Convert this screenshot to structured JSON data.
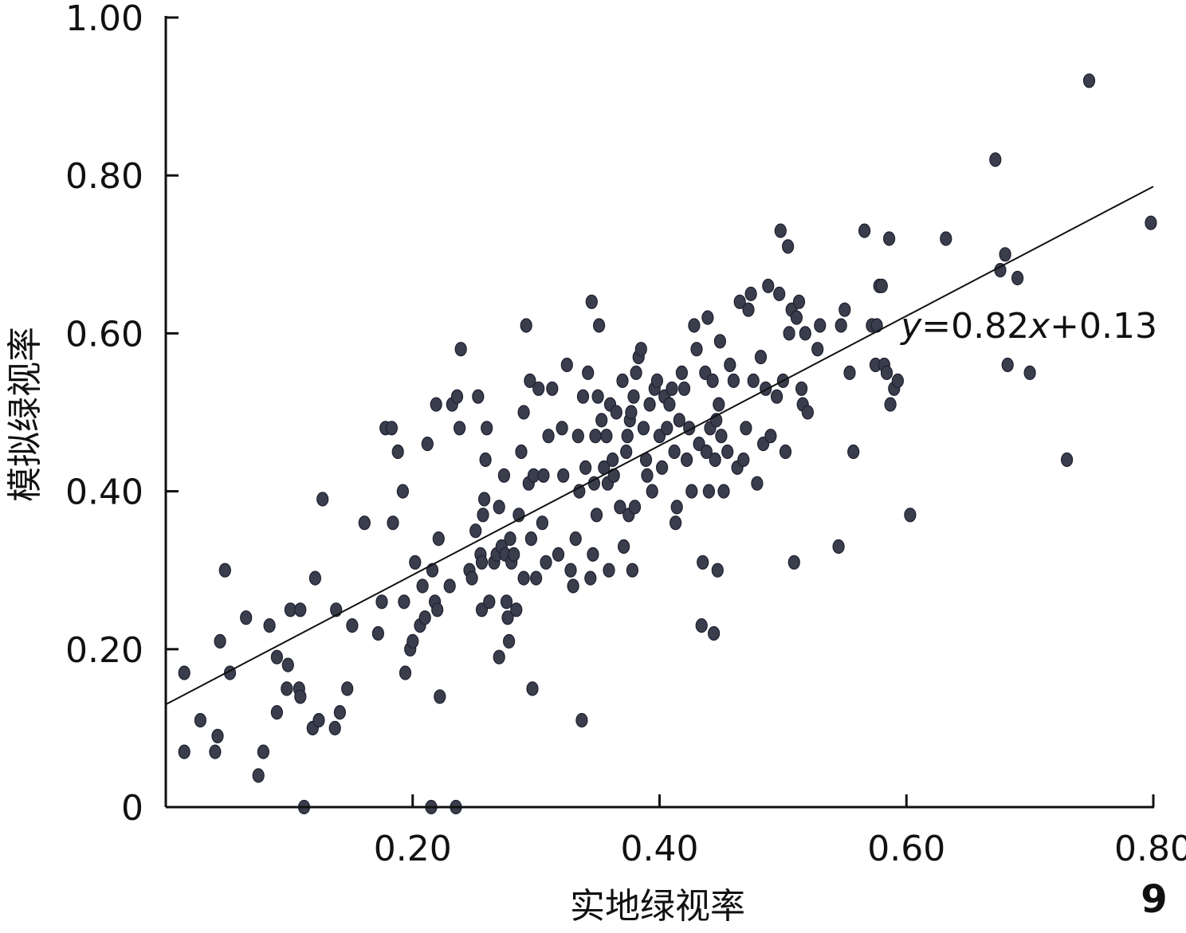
{
  "chart_data": {
    "type": "scatter",
    "xlabel": "实地绿视率",
    "ylabel": "模拟绿视率",
    "xlim": [
      0,
      0.8
    ],
    "ylim": [
      0,
      1.0
    ],
    "x_ticks": [
      {
        "value": 0.2,
        "label": "0.20"
      },
      {
        "value": 0.4,
        "label": "0.40"
      },
      {
        "value": 0.6,
        "label": "0.60"
      },
      {
        "value": 0.8,
        "label": "0.80"
      }
    ],
    "y_ticks": [
      {
        "value": 0,
        "label": "0"
      },
      {
        "value": 0.2,
        "label": "0.20"
      },
      {
        "value": 0.4,
        "label": "0.40"
      },
      {
        "value": 0.6,
        "label": "0.60"
      },
      {
        "value": 0.8,
        "label": "0.80"
      },
      {
        "value": 1.0,
        "label": "1.00"
      }
    ],
    "grid": false,
    "marker_color": "#3a3d4c",
    "trendline": {
      "slope": 0.82,
      "intercept": 0.13,
      "equation_parts": [
        "y",
        "=0.82",
        "x",
        "+0.13"
      ]
    },
    "panel_label": "9",
    "points": [
      [
        0.015,
        0.07
      ],
      [
        0.015,
        0.17
      ],
      [
        0.028,
        0.11
      ],
      [
        0.04,
        0.07
      ],
      [
        0.042,
        0.09
      ],
      [
        0.044,
        0.21
      ],
      [
        0.048,
        0.3
      ],
      [
        0.052,
        0.17
      ],
      [
        0.065,
        0.24
      ],
      [
        0.075,
        0.04
      ],
      [
        0.079,
        0.07
      ],
      [
        0.084,
        0.23
      ],
      [
        0.09,
        0.19
      ],
      [
        0.09,
        0.12
      ],
      [
        0.098,
        0.15
      ],
      [
        0.099,
        0.18
      ],
      [
        0.101,
        0.25
      ],
      [
        0.108,
        0.15
      ],
      [
        0.109,
        0.14
      ],
      [
        0.109,
        0.25
      ],
      [
        0.112,
        0.0
      ],
      [
        0.119,
        0.1
      ],
      [
        0.121,
        0.29
      ],
      [
        0.124,
        0.11
      ],
      [
        0.127,
        0.39
      ],
      [
        0.137,
        0.1
      ],
      [
        0.138,
        0.25
      ],
      [
        0.141,
        0.12
      ],
      [
        0.147,
        0.15
      ],
      [
        0.151,
        0.23
      ],
      [
        0.161,
        0.36
      ],
      [
        0.172,
        0.22
      ],
      [
        0.175,
        0.26
      ],
      [
        0.178,
        0.48
      ],
      [
        0.183,
        0.48
      ],
      [
        0.184,
        0.36
      ],
      [
        0.188,
        0.45
      ],
      [
        0.192,
        0.4
      ],
      [
        0.193,
        0.26
      ],
      [
        0.194,
        0.17
      ],
      [
        0.198,
        0.2
      ],
      [
        0.2,
        0.21
      ],
      [
        0.202,
        0.31
      ],
      [
        0.206,
        0.23
      ],
      [
        0.208,
        0.28
      ],
      [
        0.21,
        0.24
      ],
      [
        0.212,
        0.46
      ],
      [
        0.215,
        0.0
      ],
      [
        0.216,
        0.3
      ],
      [
        0.218,
        0.26
      ],
      [
        0.219,
        0.51
      ],
      [
        0.22,
        0.25
      ],
      [
        0.221,
        0.34
      ],
      [
        0.222,
        0.14
      ],
      [
        0.23,
        0.28
      ],
      [
        0.232,
        0.51
      ],
      [
        0.235,
        0.0
      ],
      [
        0.236,
        0.52
      ],
      [
        0.238,
        0.48
      ],
      [
        0.239,
        0.58
      ],
      [
        0.246,
        0.3
      ],
      [
        0.248,
        0.29
      ],
      [
        0.251,
        0.35
      ],
      [
        0.253,
        0.52
      ],
      [
        0.255,
        0.32
      ],
      [
        0.256,
        0.25
      ],
      [
        0.256,
        0.31
      ],
      [
        0.257,
        0.37
      ],
      [
        0.258,
        0.39
      ],
      [
        0.259,
        0.44
      ],
      [
        0.26,
        0.48
      ],
      [
        0.262,
        0.26
      ],
      [
        0.266,
        0.31
      ],
      [
        0.268,
        0.32
      ],
      [
        0.27,
        0.19
      ],
      [
        0.27,
        0.38
      ],
      [
        0.272,
        0.33
      ],
      [
        0.274,
        0.42
      ],
      [
        0.275,
        0.32
      ],
      [
        0.276,
        0.26
      ],
      [
        0.277,
        0.24
      ],
      [
        0.278,
        0.21
      ],
      [
        0.279,
        0.34
      ],
      [
        0.28,
        0.31
      ],
      [
        0.282,
        0.32
      ],
      [
        0.284,
        0.25
      ],
      [
        0.286,
        0.37
      ],
      [
        0.288,
        0.45
      ],
      [
        0.29,
        0.5
      ],
      [
        0.29,
        0.29
      ],
      [
        0.292,
        0.61
      ],
      [
        0.294,
        0.41
      ],
      [
        0.295,
        0.54
      ],
      [
        0.296,
        0.34
      ],
      [
        0.297,
        0.15
      ],
      [
        0.298,
        0.42
      ],
      [
        0.3,
        0.29
      ],
      [
        0.302,
        0.53
      ],
      [
        0.305,
        0.36
      ],
      [
        0.306,
        0.42
      ],
      [
        0.308,
        0.31
      ],
      [
        0.31,
        0.47
      ],
      [
        0.313,
        0.53
      ],
      [
        0.318,
        0.32
      ],
      [
        0.321,
        0.48
      ],
      [
        0.322,
        0.42
      ],
      [
        0.325,
        0.56
      ],
      [
        0.328,
        0.3
      ],
      [
        0.33,
        0.28
      ],
      [
        0.332,
        0.34
      ],
      [
        0.334,
        0.47
      ],
      [
        0.335,
        0.4
      ],
      [
        0.337,
        0.11
      ],
      [
        0.338,
        0.52
      ],
      [
        0.34,
        0.43
      ],
      [
        0.342,
        0.55
      ],
      [
        0.344,
        0.29
      ],
      [
        0.345,
        0.64
      ],
      [
        0.346,
        0.32
      ],
      [
        0.347,
        0.41
      ],
      [
        0.348,
        0.47
      ],
      [
        0.349,
        0.37
      ],
      [
        0.35,
        0.52
      ],
      [
        0.351,
        0.61
      ],
      [
        0.353,
        0.49
      ],
      [
        0.355,
        0.43
      ],
      [
        0.357,
        0.47
      ],
      [
        0.358,
        0.41
      ],
      [
        0.359,
        0.3
      ],
      [
        0.36,
        0.51
      ],
      [
        0.362,
        0.44
      ],
      [
        0.363,
        0.42
      ],
      [
        0.365,
        0.5
      ],
      [
        0.368,
        0.38
      ],
      [
        0.37,
        0.54
      ],
      [
        0.371,
        0.33
      ],
      [
        0.373,
        0.45
      ],
      [
        0.374,
        0.47
      ],
      [
        0.375,
        0.37
      ],
      [
        0.376,
        0.49
      ],
      [
        0.377,
        0.5
      ],
      [
        0.378,
        0.3
      ],
      [
        0.379,
        0.52
      ],
      [
        0.38,
        0.38
      ],
      [
        0.381,
        0.55
      ],
      [
        0.383,
        0.57
      ],
      [
        0.385,
        0.58
      ],
      [
        0.387,
        0.48
      ],
      [
        0.389,
        0.44
      ],
      [
        0.39,
        0.42
      ],
      [
        0.392,
        0.51
      ],
      [
        0.394,
        0.4
      ],
      [
        0.396,
        0.53
      ],
      [
        0.398,
        0.54
      ],
      [
        0.4,
        0.47
      ],
      [
        0.402,
        0.43
      ],
      [
        0.404,
        0.52
      ],
      [
        0.406,
        0.48
      ],
      [
        0.408,
        0.51
      ],
      [
        0.41,
        0.53
      ],
      [
        0.412,
        0.45
      ],
      [
        0.413,
        0.36
      ],
      [
        0.414,
        0.38
      ],
      [
        0.416,
        0.49
      ],
      [
        0.418,
        0.55
      ],
      [
        0.42,
        0.53
      ],
      [
        0.422,
        0.44
      ],
      [
        0.424,
        0.48
      ],
      [
        0.426,
        0.4
      ],
      [
        0.428,
        0.61
      ],
      [
        0.43,
        0.58
      ],
      [
        0.432,
        0.46
      ],
      [
        0.434,
        0.23
      ],
      [
        0.435,
        0.31
      ],
      [
        0.437,
        0.55
      ],
      [
        0.438,
        0.45
      ],
      [
        0.439,
        0.62
      ],
      [
        0.44,
        0.4
      ],
      [
        0.441,
        0.48
      ],
      [
        0.443,
        0.54
      ],
      [
        0.444,
        0.22
      ],
      [
        0.445,
        0.44
      ],
      [
        0.446,
        0.49
      ],
      [
        0.447,
        0.3
      ],
      [
        0.448,
        0.51
      ],
      [
        0.449,
        0.59
      ],
      [
        0.45,
        0.47
      ],
      [
        0.452,
        0.4
      ],
      [
        0.455,
        0.45
      ],
      [
        0.457,
        0.56
      ],
      [
        0.46,
        0.54
      ],
      [
        0.463,
        0.43
      ],
      [
        0.465,
        0.64
      ],
      [
        0.468,
        0.44
      ],
      [
        0.47,
        0.48
      ],
      [
        0.472,
        0.63
      ],
      [
        0.474,
        0.65
      ],
      [
        0.476,
        0.54
      ],
      [
        0.479,
        0.41
      ],
      [
        0.482,
        0.57
      ],
      [
        0.484,
        0.46
      ],
      [
        0.486,
        0.53
      ],
      [
        0.488,
        0.66
      ],
      [
        0.49,
        0.47
      ],
      [
        0.495,
        0.52
      ],
      [
        0.497,
        0.65
      ],
      [
        0.498,
        0.73
      ],
      [
        0.5,
        0.54
      ],
      [
        0.502,
        0.45
      ],
      [
        0.504,
        0.71
      ],
      [
        0.505,
        0.6
      ],
      [
        0.507,
        0.63
      ],
      [
        0.509,
        0.31
      ],
      [
        0.511,
        0.62
      ],
      [
        0.513,
        0.64
      ],
      [
        0.515,
        0.53
      ],
      [
        0.516,
        0.51
      ],
      [
        0.518,
        0.6
      ],
      [
        0.52,
        0.5
      ],
      [
        0.528,
        0.58
      ],
      [
        0.53,
        0.61
      ],
      [
        0.545,
        0.33
      ],
      [
        0.547,
        0.61
      ],
      [
        0.55,
        0.63
      ],
      [
        0.554,
        0.55
      ],
      [
        0.557,
        0.45
      ],
      [
        0.566,
        0.73
      ],
      [
        0.572,
        0.61
      ],
      [
        0.575,
        0.56
      ],
      [
        0.576,
        0.61
      ],
      [
        0.578,
        0.66
      ],
      [
        0.58,
        0.66
      ],
      [
        0.582,
        0.56
      ],
      [
        0.584,
        0.55
      ],
      [
        0.586,
        0.72
      ],
      [
        0.587,
        0.51
      ],
      [
        0.59,
        0.53
      ],
      [
        0.593,
        0.54
      ],
      [
        0.603,
        0.37
      ],
      [
        0.632,
        0.72
      ],
      [
        0.672,
        0.82
      ],
      [
        0.676,
        0.68
      ],
      [
        0.68,
        0.7
      ],
      [
        0.682,
        0.56
      ],
      [
        0.69,
        0.67
      ],
      [
        0.7,
        0.55
      ],
      [
        0.73,
        0.44
      ],
      [
        0.748,
        0.92
      ],
      [
        0.798,
        0.74
      ]
    ]
  }
}
